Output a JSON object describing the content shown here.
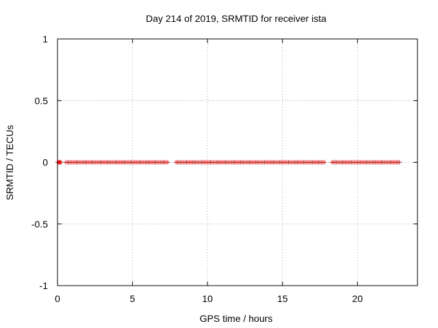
{
  "chart_data": {
    "type": "scatter",
    "title": "Day 214 of 2019, SRMTID for receiver ista",
    "xlabel": "GPS time / hours",
    "ylabel": "SRMTID / TECUs",
    "xlim": [
      0,
      24
    ],
    "ylim": [
      -1,
      1
    ],
    "xticks": [
      0,
      5,
      10,
      15,
      20
    ],
    "xtick_labels": [
      "0",
      "5",
      "10",
      "15",
      "20"
    ],
    "yticks": [
      -1,
      -0.5,
      0,
      0.5,
      1
    ],
    "ytick_labels": [
      "-1",
      "-0.5",
      "0",
      "0.5",
      "1"
    ],
    "grid": true,
    "marker": "plus",
    "series_color": "#ff0000",
    "segments": [
      {
        "start": 0.0,
        "end": 0.25,
        "step": 0.04
      },
      {
        "start": 0.55,
        "end": 7.4,
        "step": 0.1
      },
      {
        "start": 7.9,
        "end": 17.8,
        "step": 0.1
      },
      {
        "start": 18.3,
        "end": 22.8,
        "step": 0.1
      }
    ],
    "y_value": 0
  }
}
